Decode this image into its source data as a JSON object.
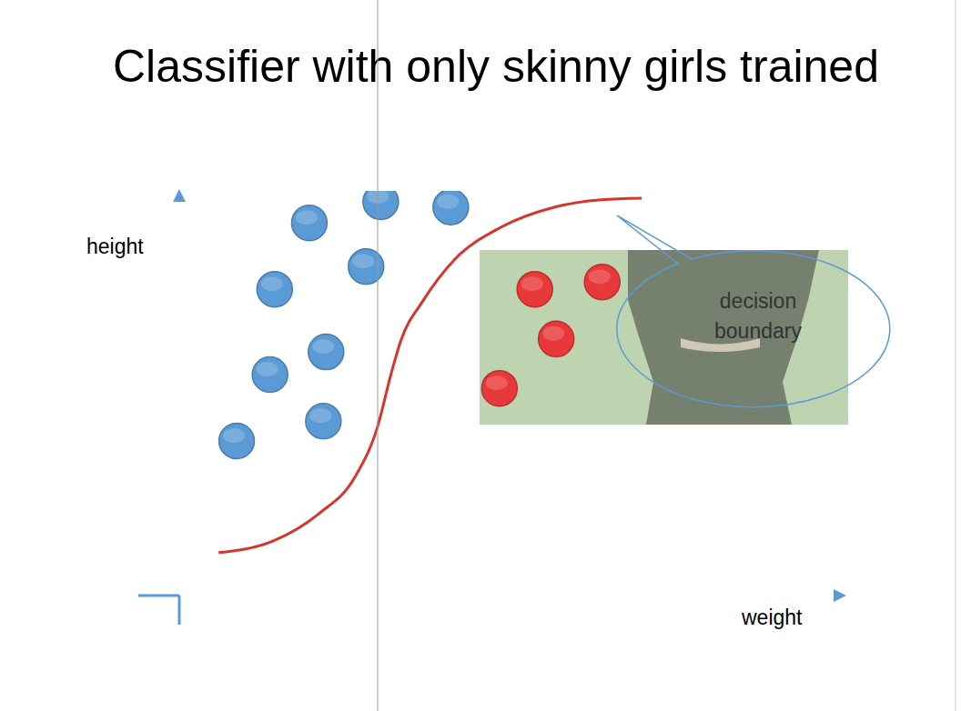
{
  "chart_data": {
    "type": "scatter",
    "title": "Classifier with only skinny girls trained",
    "x_label": "weight",
    "y_label": "height",
    "annotation": "decision boundary",
    "xlim": [
      0,
      100
    ],
    "ylim": [
      0,
      100
    ],
    "tick_labels": false,
    "grid": false,
    "series": [
      {
        "type": "scatter",
        "marker": "circle",
        "color": "#5b9bd5",
        "x": [
          19.5,
          30.2,
          40.7,
          14.3,
          28.0,
          22.0,
          13.6,
          8.6,
          21.6
        ],
        "values": [
          92.1,
          97.3,
          96.0,
          75.7,
          81.3,
          60.2,
          54.6,
          38.2,
          43.1
        ]
      },
      {
        "type": "scatter",
        "marker": "circle",
        "color": "#e8393a",
        "x": [
          53.3,
          63.4,
          56.5,
          48.0
        ],
        "values": [
          75.7,
          77.5,
          63.4,
          51.2
        ]
      },
      {
        "type": "line",
        "line_style": "solid",
        "color": "#d9342b",
        "x": [
          5.9,
          14.1,
          20.9,
          26.3,
          29.7,
          31.8,
          33.2,
          36.6,
          41.3,
          48.2,
          56.3,
          63.2,
          69.3
        ],
        "values": [
          10.6,
          13.5,
          20.2,
          29.2,
          41.6,
          55.1,
          62.9,
          73.0,
          83.1,
          91.0,
          96.0,
          97.8,
          98.2
        ]
      }
    ]
  }
}
